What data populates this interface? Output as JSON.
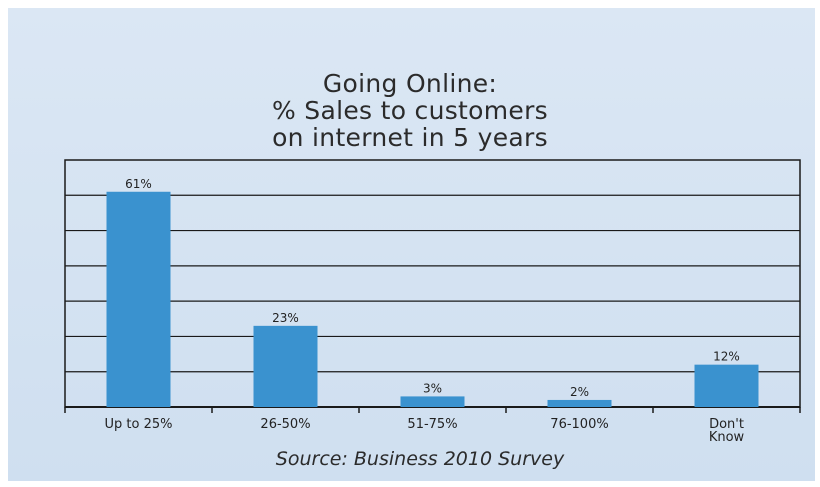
{
  "chart_data": {
    "type": "bar",
    "title_lines": [
      "Going Online:",
      "% Sales to customers",
      "on internet in 5 years"
    ],
    "categories": [
      "Up to 25%",
      "26-50%",
      "51-75%",
      "76-100%",
      "Don't Know"
    ],
    "category_lines": [
      [
        "Up to 25%"
      ],
      [
        "26-50%"
      ],
      [
        "51-75%"
      ],
      [
        "76-100%"
      ],
      [
        "Don't",
        "Know"
      ]
    ],
    "values": [
      61,
      23,
      3,
      2,
      12
    ],
    "value_labels": [
      "61%",
      "23%",
      "3%",
      "2%",
      "12%"
    ],
    "ylim": [
      0,
      70
    ],
    "grid": true,
    "bar_color": "#3a92cf",
    "source": "Source: Business 2010 Survey"
  }
}
